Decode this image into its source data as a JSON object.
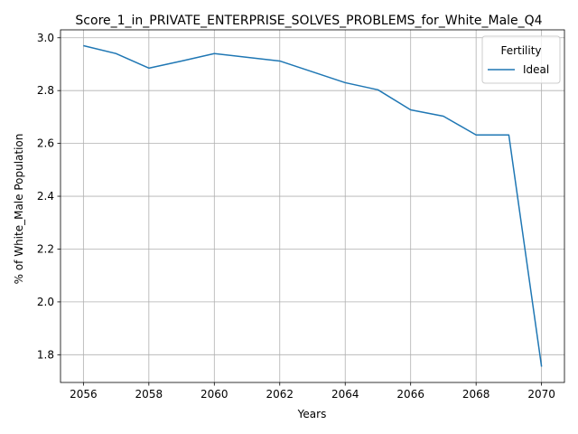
{
  "chart_data": {
    "type": "line",
    "title": "Score_1_in_PRIVATE_ENTERPRISE_SOLVES_PROBLEMS_for_White_Male_Q4",
    "xlabel": "Years",
    "ylabel": "% of White_Male Population",
    "x": [
      2056,
      2057,
      2058,
      2059,
      2060,
      2061,
      2062,
      2063,
      2064,
      2065,
      2066,
      2067,
      2068,
      2069,
      2070
    ],
    "series": [
      {
        "name": "Ideal",
        "color": "#1f77b4",
        "values": [
          2.97,
          2.94,
          2.885,
          2.912,
          2.94,
          2.926,
          2.912,
          2.871,
          2.83,
          2.803,
          2.727,
          2.703,
          2.632,
          2.632,
          1.755
        ]
      }
    ],
    "xlim": [
      2055.3,
      2070.7
    ],
    "ylim": [
      1.695,
      3.03
    ],
    "xticks": [
      2056,
      2058,
      2060,
      2062,
      2064,
      2066,
      2068,
      2070
    ],
    "yticks": [
      "1.8",
      "2.0",
      "2.2",
      "2.4",
      "2.6",
      "2.8",
      "3.0"
    ],
    "grid": true,
    "legend": {
      "title": "Fertility",
      "placement": "top-right"
    }
  }
}
